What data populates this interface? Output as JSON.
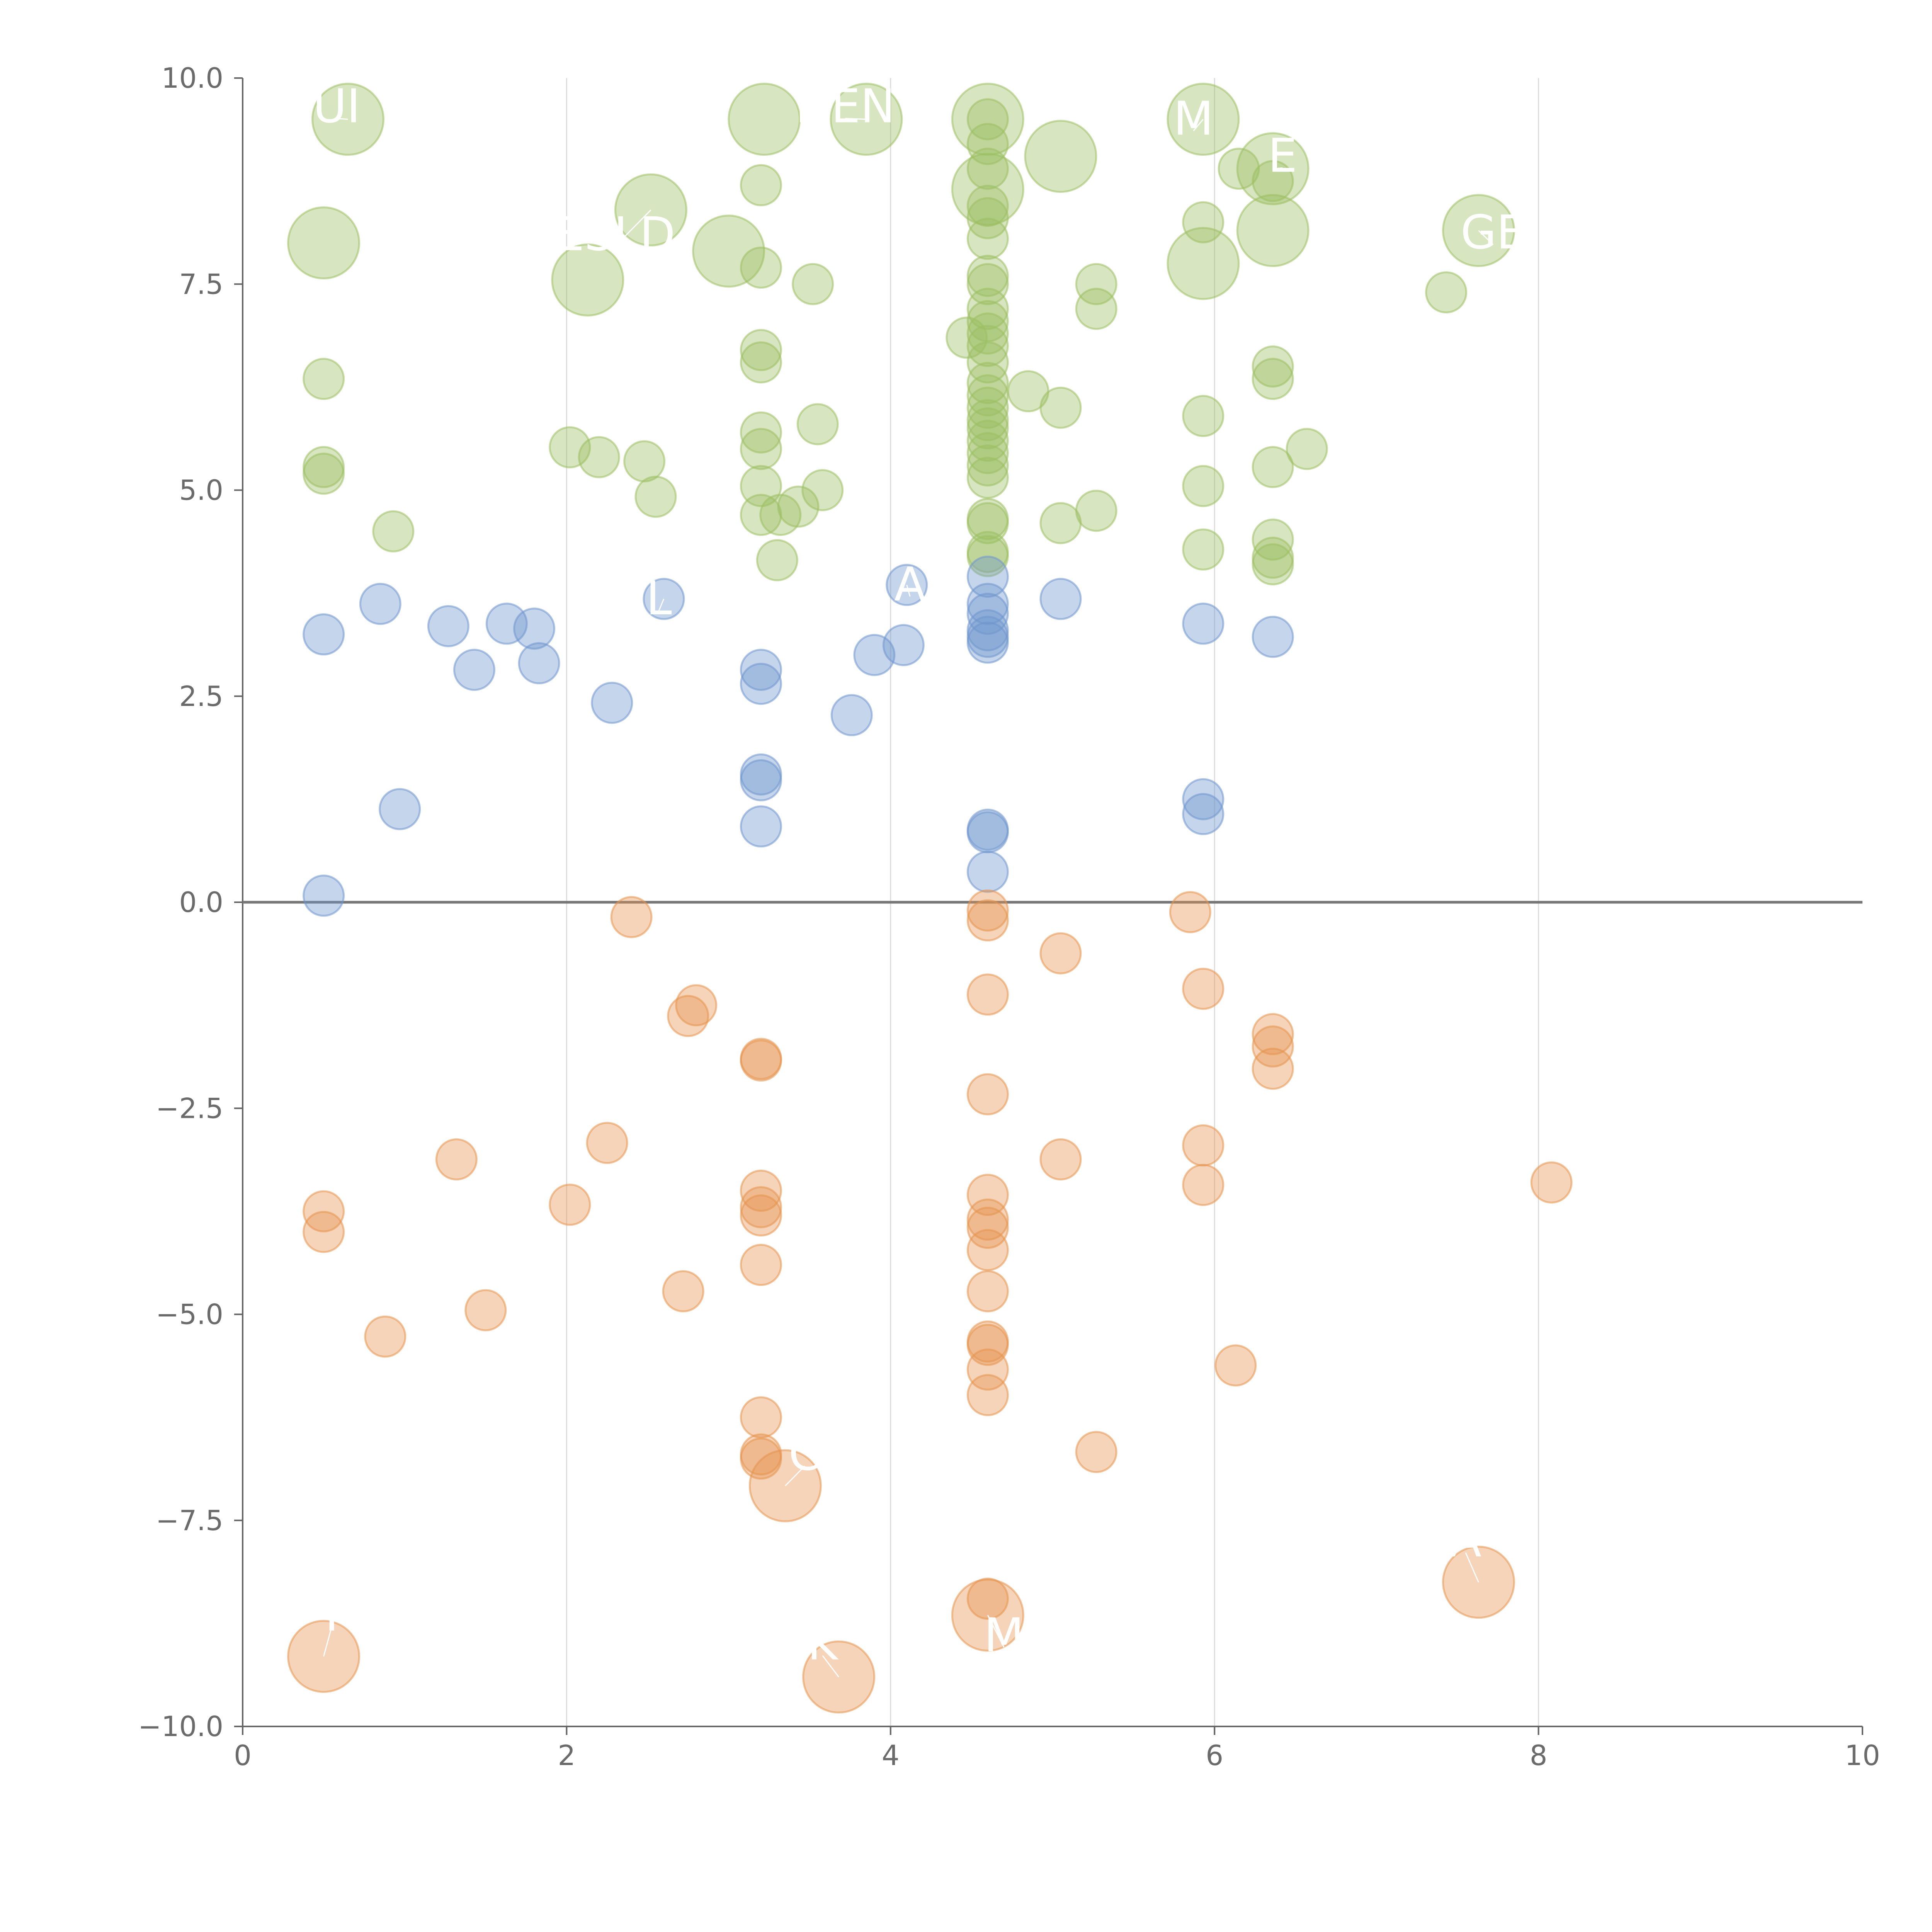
{
  "chart_data": {
    "type": "scatter",
    "title": "",
    "xlabel": "",
    "ylabel": "",
    "xlim": [
      0,
      10
    ],
    "ylim": [
      -10,
      10
    ],
    "x_ticks": [
      "0",
      "2",
      "4",
      "6",
      "8",
      "10"
    ],
    "y_ticks": [
      "10.0",
      "7.5",
      "5.0",
      "2.5",
      "0.0",
      "−2.5",
      "−5.0",
      "−7.5",
      "−10.0"
    ],
    "grid": "vertical gridlines at x = 2, 4, 6, 8",
    "reference_line": {
      "y": 0
    },
    "colors": {
      "green": "#9cbf62",
      "blue": "#6f95cd",
      "orange": "#e5934f",
      "label": "#ffffff",
      "axis": "#666666",
      "grid": "#dcdcdc"
    },
    "series": [
      {
        "color_key": "green",
        "points": [
          [
            0.65,
            9.5,
            "l"
          ],
          [
            3.22,
            9.5,
            "l"
          ],
          [
            3.85,
            9.5,
            "l"
          ],
          [
            4.6,
            9.5,
            "l"
          ],
          [
            5.93,
            9.5,
            "l"
          ],
          [
            5.05,
            9.05,
            "l"
          ],
          [
            6.36,
            8.9,
            "l"
          ],
          [
            0.5,
            8.0,
            "l"
          ],
          [
            2.52,
            8.4,
            "l"
          ],
          [
            2.13,
            7.55,
            "l"
          ],
          [
            3.0,
            7.9,
            "l"
          ],
          [
            4.6,
            8.65,
            "l"
          ],
          [
            6.36,
            8.15,
            "l"
          ],
          [
            5.93,
            7.75,
            "l"
          ],
          [
            7.63,
            8.15,
            "l"
          ],
          [
            4.6,
            9.5,
            "s"
          ],
          [
            4.6,
            9.2,
            "s"
          ],
          [
            4.6,
            8.9,
            "s"
          ],
          [
            4.6,
            8.45,
            "s"
          ],
          [
            4.6,
            8.3,
            "s"
          ],
          [
            4.6,
            8.05,
            "s"
          ],
          [
            4.6,
            7.6,
            "s"
          ],
          [
            4.6,
            7.5,
            "s"
          ],
          [
            4.6,
            7.2,
            "s"
          ],
          [
            4.6,
            7.05,
            "s"
          ],
          [
            4.6,
            6.9,
            "s"
          ],
          [
            4.6,
            6.75,
            "s"
          ],
          [
            4.6,
            6.55,
            "s"
          ],
          [
            4.6,
            6.3,
            "s"
          ],
          [
            4.6,
            6.15,
            "s"
          ],
          [
            4.6,
            6.0,
            "s"
          ],
          [
            4.6,
            5.85,
            "s"
          ],
          [
            4.6,
            5.75,
            "s"
          ],
          [
            4.6,
            5.6,
            "s"
          ],
          [
            4.6,
            5.45,
            "s"
          ],
          [
            4.6,
            5.3,
            "s"
          ],
          [
            4.6,
            5.15,
            "s"
          ],
          [
            4.6,
            4.65,
            "s"
          ],
          [
            4.6,
            4.6,
            "s"
          ],
          [
            4.6,
            4.25,
            "s"
          ],
          [
            4.6,
            4.2,
            "s"
          ],
          [
            4.47,
            6.85,
            "s"
          ],
          [
            3.2,
            8.7,
            "s"
          ],
          [
            3.2,
            7.7,
            "s"
          ],
          [
            3.52,
            7.5,
            "s"
          ],
          [
            3.2,
            6.7,
            "s"
          ],
          [
            3.2,
            6.55,
            "s"
          ],
          [
            3.2,
            5.7,
            "s"
          ],
          [
            3.2,
            5.5,
            "s"
          ],
          [
            3.2,
            5.05,
            "s"
          ],
          [
            3.2,
            4.7,
            "s"
          ],
          [
            3.32,
            4.7,
            "s"
          ],
          [
            3.43,
            4.8,
            "s"
          ],
          [
            3.58,
            5.0,
            "s"
          ],
          [
            3.55,
            5.8,
            "s"
          ],
          [
            3.3,
            4.15,
            "s"
          ],
          [
            0.5,
            6.35,
            "s"
          ],
          [
            0.5,
            5.28,
            "s"
          ],
          [
            0.5,
            5.2,
            "s"
          ],
          [
            0.93,
            4.5,
            "s"
          ],
          [
            2.02,
            5.52,
            "s"
          ],
          [
            2.2,
            5.4,
            "s"
          ],
          [
            2.48,
            5.35,
            "s"
          ],
          [
            2.55,
            4.92,
            "s"
          ],
          [
            4.85,
            6.2,
            "s"
          ],
          [
            5.05,
            6.0,
            "s"
          ],
          [
            5.05,
            4.6,
            "s"
          ],
          [
            5.27,
            7.5,
            "s"
          ],
          [
            5.27,
            7.2,
            "s"
          ],
          [
            5.27,
            4.75,
            "s"
          ],
          [
            5.93,
            8.25,
            "s"
          ],
          [
            5.93,
            5.9,
            "s"
          ],
          [
            5.93,
            5.05,
            "s"
          ],
          [
            5.93,
            4.28,
            "s"
          ],
          [
            6.15,
            8.9,
            "s"
          ],
          [
            6.36,
            8.75,
            "s"
          ],
          [
            6.36,
            6.5,
            "s"
          ],
          [
            6.36,
            6.35,
            "s"
          ],
          [
            6.36,
            5.28,
            "s"
          ],
          [
            6.36,
            4.4,
            "s"
          ],
          [
            6.36,
            4.18,
            "s"
          ],
          [
            6.36,
            4.1,
            "s"
          ],
          [
            6.57,
            5.5,
            "s"
          ],
          [
            7.43,
            7.4,
            "s"
          ]
        ]
      },
      {
        "color_key": "blue",
        "points": [
          [
            0.5,
            3.25,
            "s"
          ],
          [
            0.85,
            3.62,
            "s"
          ],
          [
            1.27,
            3.35,
            "s"
          ],
          [
            1.43,
            2.82,
            "s"
          ],
          [
            1.63,
            3.38,
            "s"
          ],
          [
            1.8,
            3.32,
            "s"
          ],
          [
            1.83,
            2.9,
            "s"
          ],
          [
            2.28,
            2.42,
            "s"
          ],
          [
            2.6,
            3.68,
            "s"
          ],
          [
            3.2,
            2.82,
            "s"
          ],
          [
            3.2,
            2.65,
            "s"
          ],
          [
            3.2,
            1.55,
            "s"
          ],
          [
            3.2,
            1.48,
            "s"
          ],
          [
            3.2,
            0.92,
            "s"
          ],
          [
            3.76,
            2.27,
            "s"
          ],
          [
            3.9,
            3.0,
            "s"
          ],
          [
            4.08,
            3.12,
            "s"
          ],
          [
            4.1,
            3.85,
            "s"
          ],
          [
            4.6,
            3.95,
            "s"
          ],
          [
            4.6,
            3.62,
            "s"
          ],
          [
            4.6,
            3.5,
            "s"
          ],
          [
            4.6,
            3.3,
            "s"
          ],
          [
            4.6,
            3.22,
            "s"
          ],
          [
            4.6,
            3.15,
            "s"
          ],
          [
            4.6,
            0.88,
            "s"
          ],
          [
            4.6,
            0.85,
            "s"
          ],
          [
            4.6,
            0.37,
            "s"
          ],
          [
            5.05,
            3.68,
            "s"
          ],
          [
            5.93,
            3.38,
            "s"
          ],
          [
            5.93,
            1.25,
            "s"
          ],
          [
            5.93,
            1.07,
            "s"
          ],
          [
            6.36,
            3.22,
            "s"
          ],
          [
            0.5,
            0.08,
            "s"
          ],
          [
            0.97,
            1.13,
            "s"
          ]
        ]
      },
      {
        "color_key": "orange",
        "points": [
          [
            0.5,
            -9.15,
            "l"
          ],
          [
            3.68,
            -9.4,
            "l"
          ],
          [
            4.6,
            -8.65,
            "l"
          ],
          [
            3.35,
            -7.08,
            "l"
          ],
          [
            7.63,
            -8.25,
            "l"
          ],
          [
            2.4,
            -0.18,
            "s"
          ],
          [
            2.8,
            -1.25,
            "s"
          ],
          [
            2.75,
            -1.38,
            "s"
          ],
          [
            3.2,
            -1.9,
            "s"
          ],
          [
            3.2,
            -1.92,
            "s"
          ],
          [
            2.25,
            -2.92,
            "s"
          ],
          [
            1.32,
            -3.12,
            "s"
          ],
          [
            0.5,
            -3.75,
            "s"
          ],
          [
            0.5,
            -4.0,
            "s"
          ],
          [
            2.02,
            -3.67,
            "s"
          ],
          [
            1.5,
            -4.95,
            "s"
          ],
          [
            0.88,
            -5.27,
            "s"
          ],
          [
            2.72,
            -4.72,
            "s"
          ],
          [
            3.2,
            -3.5,
            "s"
          ],
          [
            3.2,
            -3.7,
            "s"
          ],
          [
            3.2,
            -3.8,
            "s"
          ],
          [
            3.2,
            -4.4,
            "s"
          ],
          [
            3.2,
            -6.25,
            "s"
          ],
          [
            3.2,
            -6.7,
            "s"
          ],
          [
            3.2,
            -6.75,
            "s"
          ],
          [
            4.6,
            -0.1,
            "s"
          ],
          [
            4.6,
            -0.22,
            "s"
          ],
          [
            4.6,
            -1.12,
            "s"
          ],
          [
            4.6,
            -2.33,
            "s"
          ],
          [
            4.6,
            -3.55,
            "s"
          ],
          [
            4.6,
            -3.85,
            "s"
          ],
          [
            4.6,
            -3.95,
            "s"
          ],
          [
            4.6,
            -4.22,
            "s"
          ],
          [
            4.6,
            -4.72,
            "s"
          ],
          [
            4.6,
            -5.33,
            "s"
          ],
          [
            4.6,
            -5.37,
            "s"
          ],
          [
            4.6,
            -5.67,
            "s"
          ],
          [
            4.6,
            -5.98,
            "s"
          ],
          [
            4.6,
            -8.45,
            "s"
          ],
          [
            5.05,
            -0.62,
            "s"
          ],
          [
            5.05,
            -3.12,
            "s"
          ],
          [
            5.27,
            -6.67,
            "s"
          ],
          [
            5.85,
            -0.12,
            "s"
          ],
          [
            5.93,
            -1.05,
            "s"
          ],
          [
            5.93,
            -2.95,
            "s"
          ],
          [
            5.93,
            -3.43,
            "s"
          ],
          [
            6.13,
            -5.62,
            "s"
          ],
          [
            6.36,
            -1.6,
            "s"
          ],
          [
            6.36,
            -1.75,
            "s"
          ],
          [
            6.36,
            -2.02,
            "s"
          ],
          [
            8.08,
            -3.4,
            "s"
          ]
        ]
      }
    ],
    "labels": [
      {
        "text": "UI",
        "x": 0.65,
        "y": 9.5,
        "tx": 0.58,
        "ty": 9.65
      },
      {
        "text": "DEN",
        "x": 3.85,
        "y": 9.5,
        "tx": 3.72,
        "ty": 9.65
      },
      {
        "text": "M",
        "x": 5.93,
        "y": 9.5,
        "tx": 5.87,
        "ty": 9.5
      },
      {
        "text": "E",
        "x": 6.36,
        "y": 8.9,
        "tx": 6.42,
        "ty": 9.05
      },
      {
        "text": "GE",
        "x": 7.63,
        "y": 8.15,
        "tx": 7.72,
        "ty": 8.12
      },
      {
        "text": "ESLD",
        "x": 2.52,
        "y": 8.4,
        "tx": 2.3,
        "ty": 8.1
      },
      {
        "text": "A",
        "x": 4.1,
        "y": 3.85,
        "tx": 4.12,
        "ty": 3.85
      },
      {
        "text": "L",
        "x": 2.6,
        "y": 3.68,
        "tx": 2.57,
        "ty": 3.68
      },
      {
        "text": "I",
        "x": 0.5,
        "y": -9.15,
        "tx": 0.55,
        "ty": -8.65
      },
      {
        "text": "K",
        "x": 3.68,
        "y": -9.4,
        "tx": 3.58,
        "ty": -9.0
      },
      {
        "text": "M",
        "x": 4.6,
        "y": -8.65,
        "tx": 4.7,
        "ty": -8.9
      },
      {
        "text": "C",
        "x": 3.35,
        "y": -7.08,
        "tx": 3.47,
        "ty": -6.7
      },
      {
        "text": "A",
        "x": 7.63,
        "y": -8.25,
        "tx": 7.55,
        "ty": -7.75
      }
    ]
  }
}
